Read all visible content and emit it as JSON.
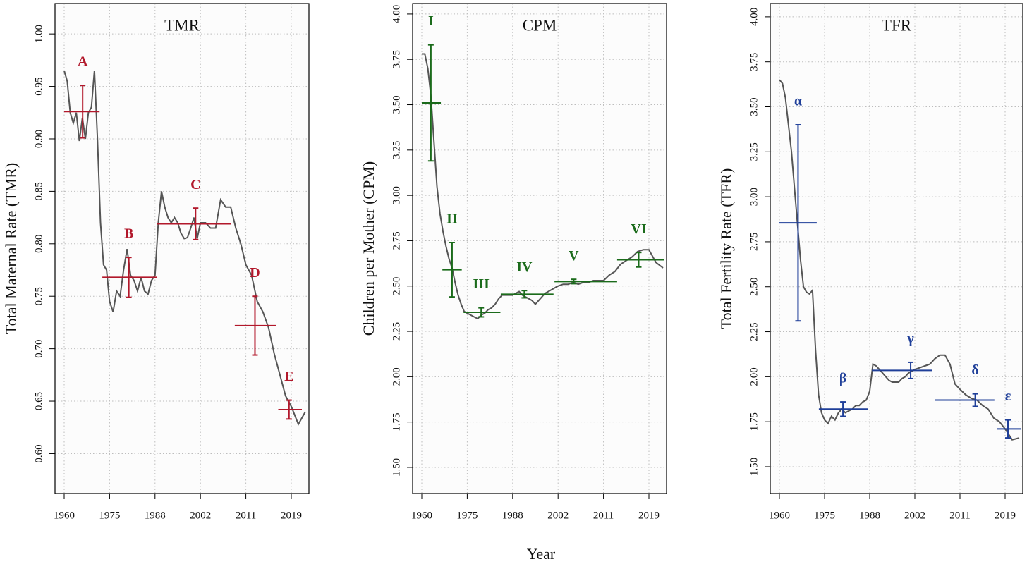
{
  "xlabel": "Year",
  "chart_data": [
    {
      "type": "line",
      "title": "TMR",
      "ylabel": "Total Maternal Rate (TMR)",
      "color": "#555555",
      "segment_color": "#b2182b",
      "grid": true,
      "xlim": [
        1957,
        2021.5
      ],
      "xticks": [
        1960,
        1975,
        1988,
        2002,
        2011,
        2019
      ],
      "ylim": [
        0.562,
        1.029
      ],
      "yticks": [
        {
          "value": 0.6,
          "label": "0.60"
        },
        0.65,
        {
          "value": 0.7,
          "label": "0.70"
        },
        0.75,
        {
          "value": 0.8,
          "label": "0.80"
        },
        0.85,
        {
          "value": 0.9,
          "label": "0.90"
        },
        0.95,
        {
          "value": 1.0,
          "label": "1.00"
        }
      ],
      "x": [
        1960,
        1961,
        1962,
        1963,
        1964,
        1965,
        1966,
        1967,
        1968,
        1969,
        1970,
        1971,
        1972,
        1973,
        1974,
        1975,
        1976,
        1977,
        1978,
        1979,
        1980,
        1981,
        1982,
        1983,
        1984,
        1985,
        1986,
        1987,
        1988,
        1989,
        1990,
        1991,
        1992,
        1993,
        1994,
        1995,
        1996,
        1997,
        1998,
        1999,
        2000,
        2001,
        2002,
        2003,
        2004,
        2005,
        2006,
        2007,
        2008,
        2009,
        2010,
        2011,
        2012,
        2013,
        2014,
        2015,
        2016,
        2017,
        2018,
        2019,
        2020,
        2021
      ],
      "values": [
        0.965,
        0.955,
        0.925,
        0.915,
        0.925,
        0.898,
        0.92,
        0.9,
        0.925,
        0.93,
        0.965,
        0.9,
        0.82,
        0.78,
        0.775,
        0.745,
        0.735,
        0.755,
        0.75,
        0.775,
        0.795,
        0.77,
        0.765,
        0.755,
        0.768,
        0.755,
        0.752,
        0.765,
        0.77,
        0.82,
        0.85,
        0.835,
        0.825,
        0.82,
        0.825,
        0.82,
        0.81,
        0.805,
        0.806,
        0.815,
        0.825,
        0.805,
        0.82,
        0.82,
        0.815,
        0.815,
        0.842,
        0.835,
        0.835,
        0.815,
        0.8,
        0.78,
        0.77,
        0.745,
        0.735,
        0.72,
        0.695,
        0.675,
        0.655,
        0.645,
        0.628,
        0.64
      ],
      "segments": [
        {
          "label": "A",
          "start": 1960,
          "end": 1971.7,
          "x": 1966.1,
          "value": 0.926,
          "error": 0.025
        },
        {
          "label": "B",
          "start": 1972.6,
          "end": 1988.6,
          "x": 1980.5,
          "value": 0.768,
          "error": 0.019
        },
        {
          "label": "C",
          "start": 1988.6,
          "end": 2008,
          "x": 2000.5,
          "value": 0.819,
          "error": 0.015
        },
        {
          "label": "D",
          "start": 2008.8,
          "end": 2016.3,
          "x": 2012.6,
          "value": 0.722,
          "error": 0.028
        },
        {
          "label": "E",
          "start": 2016.7,
          "end": 2020.5,
          "x": 2018.6,
          "value": 0.642,
          "error": 0.009
        }
      ]
    },
    {
      "type": "line",
      "title": "CPM",
      "ylabel": "Children per Mother (CPM)",
      "color": "#555555",
      "segment_color": "#1b6b1b",
      "grid": true,
      "xlim": [
        1957,
        2021.5
      ],
      "xticks": [
        1960,
        1975,
        1988,
        2002,
        2011,
        2019
      ],
      "ylim": [
        1.356,
        4.058
      ],
      "yticks": [
        {
          "value": 1.5,
          "label": "1.50"
        },
        1.75,
        {
          "value": 2.0,
          "label": "2.00"
        },
        2.25,
        {
          "value": 2.5,
          "label": "2.50"
        },
        2.75,
        {
          "value": 3.0,
          "label": "3.00"
        },
        3.25,
        {
          "value": 3.5,
          "label": "3.50"
        },
        3.75,
        {
          "value": 4.0,
          "label": "4.00"
        }
      ],
      "x": [
        1960,
        1961,
        1962,
        1963,
        1964,
        1965,
        1966,
        1967,
        1968,
        1969,
        1970,
        1971,
        1972,
        1973,
        1974,
        1975,
        1976,
        1977,
        1978,
        1979,
        1980,
        1981,
        1982,
        1983,
        1984,
        1985,
        1986,
        1987,
        1988,
        1989,
        1990,
        1991,
        1992,
        1993,
        1994,
        1995,
        1996,
        1997,
        1998,
        1999,
        2000,
        2001,
        2002,
        2003,
        2004,
        2005,
        2006,
        2007,
        2008,
        2009,
        2010,
        2011,
        2012,
        2013,
        2014,
        2015,
        2016,
        2017,
        2018,
        2019,
        2020,
        2021
      ],
      "values": [
        3.78,
        3.78,
        3.7,
        3.55,
        3.3,
        3.05,
        2.9,
        2.8,
        2.72,
        2.65,
        2.6,
        2.52,
        2.45,
        2.4,
        2.36,
        2.35,
        2.34,
        2.33,
        2.32,
        2.34,
        2.35,
        2.37,
        2.38,
        2.4,
        2.43,
        2.45,
        2.45,
        2.45,
        2.45,
        2.46,
        2.47,
        2.45,
        2.44,
        2.43,
        2.42,
        2.4,
        2.42,
        2.44,
        2.46,
        2.47,
        2.48,
        2.49,
        2.5,
        2.51,
        2.51,
        2.52,
        2.51,
        2.52,
        2.52,
        2.53,
        2.53,
        2.53,
        2.56,
        2.58,
        2.62,
        2.64,
        2.66,
        2.69,
        2.7,
        2.7,
        2.63,
        2.6
      ],
      "segments": [
        {
          "label": "I",
          "start": 1960,
          "end": 1966.3,
          "x": 1963,
          "value": 3.51,
          "error": 0.32
        },
        {
          "label": "II",
          "start": 1966.8,
          "end": 1973.2,
          "x": 1970,
          "value": 2.59,
          "error": 0.15
        },
        {
          "label": "III",
          "start": 1973.8,
          "end": 1984.5,
          "x": 1979,
          "value": 2.355,
          "error": 0.025
        },
        {
          "label": "IV",
          "start": 1984.6,
          "end": 2000.6,
          "x": 1991.6,
          "value": 2.455,
          "error": 0.02
        },
        {
          "label": "V",
          "start": 2000.9,
          "end": 2013.4,
          "x": 2005.1,
          "value": 2.525,
          "error": 0.012
        },
        {
          "label": "VI",
          "start": 2013.4,
          "end": 2021.2,
          "x": 2017.2,
          "value": 2.645,
          "error": 0.04
        }
      ]
    },
    {
      "type": "line",
      "title": "TFR",
      "ylabel": "Total Fertility Rate (TFR)",
      "color": "#555555",
      "segment_color": "#1f3f99",
      "grid": true,
      "xlim": [
        1957,
        2021.5
      ],
      "xticks": [
        1960,
        1975,
        1988,
        2002,
        2011,
        2019
      ],
      "ylim": [
        1.351,
        4.074
      ],
      "yticks": [
        {
          "value": 1.5,
          "label": "1.50"
        },
        1.75,
        {
          "value": 2.0,
          "label": "2.00"
        },
        2.25,
        {
          "value": 2.5,
          "label": "2.50"
        },
        2.75,
        {
          "value": 3.0,
          "label": "3.00"
        },
        3.25,
        {
          "value": 3.5,
          "label": "3.50"
        },
        3.75,
        {
          "value": 4.0,
          "label": "4.00"
        }
      ],
      "x": [
        1960,
        1961,
        1962,
        1963,
        1964,
        1965,
        1966,
        1967,
        1968,
        1969,
        1970,
        1971,
        1972,
        1973,
        1974,
        1975,
        1976,
        1977,
        1978,
        1979,
        1980,
        1981,
        1982,
        1983,
        1984,
        1985,
        1986,
        1987,
        1988,
        1989,
        1990,
        1991,
        1992,
        1993,
        1994,
        1995,
        1996,
        1997,
        1998,
        1999,
        2000,
        2001,
        2002,
        2003,
        2004,
        2005,
        2006,
        2007,
        2008,
        2009,
        2010,
        2011,
        2012,
        2013,
        2014,
        2015,
        2016,
        2017,
        2018,
        2019,
        2020,
        2021
      ],
      "values": [
        3.65,
        3.63,
        3.55,
        3.4,
        3.25,
        3.05,
        2.85,
        2.65,
        2.5,
        2.47,
        2.46,
        2.48,
        2.15,
        1.9,
        1.8,
        1.76,
        1.74,
        1.78,
        1.76,
        1.8,
        1.82,
        1.8,
        1.81,
        1.82,
        1.84,
        1.84,
        1.86,
        1.87,
        1.92,
        2.07,
        2.06,
        2.04,
        2.02,
        2.0,
        1.98,
        1.97,
        1.97,
        1.97,
        1.99,
        2.0,
        2.02,
        2.03,
        2.04,
        2.05,
        2.06,
        2.07,
        2.1,
        2.12,
        2.12,
        2.07,
        1.96,
        1.93,
        1.9,
        1.88,
        1.87,
        1.84,
        1.82,
        1.77,
        1.75,
        1.71,
        1.65,
        1.66
      ],
      "segments": [
        {
          "label": "α",
          "start": 1960,
          "end": 1972.4,
          "x": 1966.2,
          "value": 2.855,
          "error": 0.545
        },
        {
          "label": "β",
          "start": 1973.1,
          "end": 1987.4,
          "x": 1980.3,
          "value": 1.82,
          "error": 0.04
        },
        {
          "label": "γ",
          "start": 1988.7,
          "end": 2005.5,
          "x": 2000.7,
          "value": 2.035,
          "error": 0.045
        },
        {
          "label": "δ",
          "start": 2006,
          "end": 2017.1,
          "x": 2013.7,
          "value": 1.87,
          "error": 0.035
        },
        {
          "label": "ε",
          "start": 2017.5,
          "end": 2021.2,
          "x": 2019.4,
          "value": 1.71,
          "error": 0.05
        }
      ]
    }
  ]
}
